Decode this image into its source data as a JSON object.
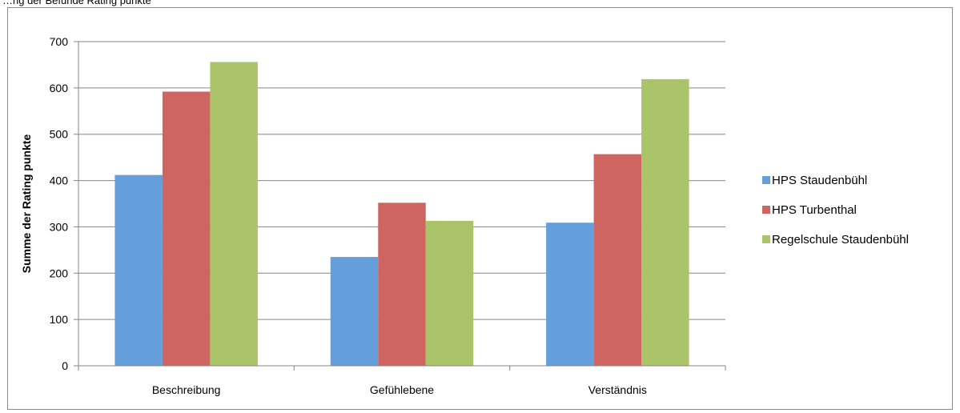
{
  "caption": "…ng der Befunde Rating punkte",
  "chart_data": {
    "type": "bar",
    "categories": [
      "Beschreibung",
      "Gefühlebene",
      "Verständnis"
    ],
    "series": [
      {
        "name": "HPS Staudenbühl",
        "values": [
          412,
          235,
          309
        ],
        "color": "#659fdb"
      },
      {
        "name": "HPS Turbenthal",
        "values": [
          592,
          352,
          457
        ],
        "color": "#cf6560"
      },
      {
        "name": "Regelschule Staudenbühl",
        "values": [
          656,
          313,
          619
        ],
        "color": "#abc46a"
      }
    ],
    "ylabel": "Summe der Rating punkte",
    "xlabel": "",
    "ylim": [
      0,
      700
    ],
    "yticks": [
      0,
      100,
      200,
      300,
      400,
      500,
      600,
      700
    ],
    "grid": true,
    "legend_position": "right"
  }
}
